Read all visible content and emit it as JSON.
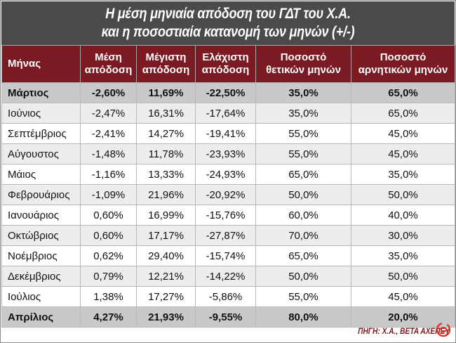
{
  "title": {
    "line1": "Η μέση μηνιαία απόδοση του ΓΔΤ του Χ.Α.",
    "line2": "και η ποσοστιαία κατανομή των μηνών (+/-)"
  },
  "headers": {
    "month": "Μήνας",
    "avg_l1": "Μέση",
    "avg_l2": "απόδοση",
    "max_l1": "Μέγιστη",
    "max_l2": "απόδοση",
    "min_l1": "Ελάχιστη",
    "min_l2": "απόδοση",
    "pos_l1": "Ποσοστό",
    "pos_l2": "θετικών μηνών",
    "neg_l1": "Ποσοστό",
    "neg_l2": "αρνητικών μηνών"
  },
  "rows": [
    {
      "month": "Μάρτιος",
      "avg": "-2,60%",
      "max": "11,69%",
      "min": "-22,50%",
      "pos": "35,0%",
      "neg": "65,0%",
      "highlight": true
    },
    {
      "month": "Ιούνιος",
      "avg": "-2,47%",
      "max": "16,31%",
      "min": "-17,64%",
      "pos": "35,0%",
      "neg": "65,0%",
      "highlight": false
    },
    {
      "month": "Σεπτέμβριος",
      "avg": "-2,41%",
      "max": "14,27%",
      "min": "-19,41%",
      "pos": "55,0%",
      "neg": "45,0%",
      "highlight": false
    },
    {
      "month": "Αύγουστος",
      "avg": "-1,48%",
      "max": "11,78%",
      "min": "-23,93%",
      "pos": "55,0%",
      "neg": "45,0%",
      "highlight": false
    },
    {
      "month": "Μάιος",
      "avg": "-1,16%",
      "max": "13,33%",
      "min": "-24,93%",
      "pos": "65,0%",
      "neg": "35,0%",
      "highlight": false
    },
    {
      "month": "Φεβρουάριος",
      "avg": "-1,09%",
      "max": "21,96%",
      "min": "-20,92%",
      "pos": "50,0%",
      "neg": "50,0%",
      "highlight": false
    },
    {
      "month": "Ιανουάριος",
      "avg": "0,60%",
      "max": "16,99%",
      "min": "-15,76%",
      "pos": "60,0%",
      "neg": "40,0%",
      "highlight": false
    },
    {
      "month": "Οκτώβριος",
      "avg": "0,60%",
      "max": "17,17%",
      "min": "-27,87%",
      "pos": "70,0%",
      "neg": "30,0%",
      "highlight": false
    },
    {
      "month": "Νοέμβριος",
      "avg": "0,62%",
      "max": "29,40%",
      "min": "-15,74%",
      "pos": "65,0%",
      "neg": "35,0%",
      "highlight": false
    },
    {
      "month": "Δεκέμβριος",
      "avg": "0,79%",
      "max": "12,21%",
      "min": "-14,22%",
      "pos": "50,0%",
      "neg": "50,0%",
      "highlight": false
    },
    {
      "month": "Ιούλιος",
      "avg": "1,38%",
      "max": "17,27%",
      "min": "-5,86%",
      "pos": "55,0%",
      "neg": "45,0%",
      "highlight": false
    },
    {
      "month": "Απρίλιος",
      "avg": "4,27%",
      "max": "21,93%",
      "min": "-9,55%",
      "pos": "80,0%",
      "neg": "20,0%",
      "highlight": true
    }
  ],
  "source": "ΠΗΓΗ: Χ.Α., ΒΕΤΑ ΑΧΕΠΕΥ",
  "colors": {
    "title_bg": "#4a4a4a",
    "header_bg": "#7b1a22",
    "highlight_row": "#c9c9c9",
    "alt_row": "#ededed",
    "logo": "#d9372a"
  },
  "logo_icon": "swirl-logo-icon"
}
